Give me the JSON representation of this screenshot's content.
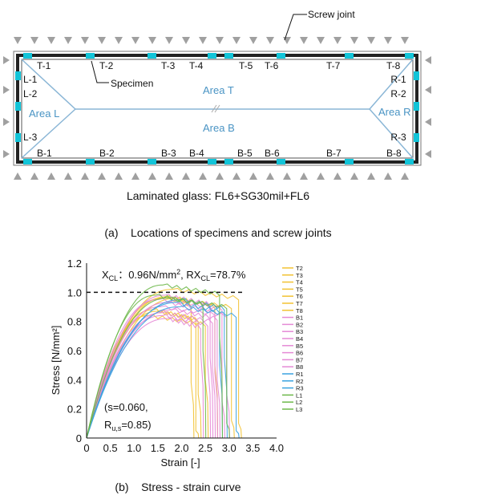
{
  "figure_a": {
    "specimen_labels": {
      "top": [
        "T-1",
        "T-2",
        "T-3",
        "T-4",
        "T-5",
        "T-6",
        "T-7",
        "T-8"
      ],
      "bottom": [
        "B-1",
        "B-2",
        "B-3",
        "B-4",
        "B-5",
        "B-6",
        "B-7",
        "B-8"
      ],
      "left": [
        "L-1",
        "L-2",
        "L-3"
      ],
      "right": [
        "R-1",
        "R-2",
        "R-3"
      ]
    },
    "callout_screw": "Screw joint",
    "callout_specimen": "Specimen",
    "area_t": "Area T",
    "area_b": "Area B",
    "area_l": "Area L",
    "area_r": "Area R",
    "glass_caption": "Laminated glass: FL6+SG30mil+FL6",
    "caption": "(a)    Locations of specimens and screw joints",
    "colors": {
      "frame": "#222222",
      "specimen": "#12c4d8",
      "area_line": "#8ab6d6",
      "area_text": "#4a94c4",
      "support": "#a0a0a0"
    }
  },
  "figure_b": {
    "caption": "(b)    Stress - strain curve",
    "annotation_x": "X",
    "annotation_x_sub": "CL",
    "annotation_x_rest": "：0.96N/mm",
    "annotation_x_sup": "2",
    "annotation_rx": ", RX",
    "annotation_rx_sub": "CL",
    "annotation_rx_rest": "=78.7%",
    "stat_line1": "(s=0.060,",
    "stat_line2_a": "R",
    "stat_line2_sub": "u,s",
    "stat_line2_b": "=0.85)"
  },
  "chart_data": {
    "type": "line",
    "xlabel": "Strain [-]",
    "ylabel": "Stress [N/mm²]",
    "xlim": [
      0,
      4.0
    ],
    "ylim": [
      0,
      1.2
    ],
    "xticks": [
      "0",
      "0.5",
      "1.0",
      "1.5",
      "2.0",
      "2.5",
      "3.0",
      "3.5",
      "4.0"
    ],
    "yticks": [
      "0",
      "0.2",
      "0.4",
      "0.6",
      "0.8",
      "1.0",
      "1.2"
    ],
    "reference_line": {
      "y": 1.0,
      "style": "dashed"
    },
    "legend_position": "right",
    "grid": false,
    "series": [
      {
        "name": "T2",
        "color": "#f2c233",
        "peak": 0.97,
        "peak_strain": 1.7,
        "fail": 2.2,
        "drop": 0.38
      },
      {
        "name": "T3",
        "color": "#f2c233",
        "peak": 0.96,
        "peak_strain": 1.9,
        "fail": 2.7,
        "drop": 0.5
      },
      {
        "name": "T4",
        "color": "#f2c233",
        "peak": 1.02,
        "peak_strain": 1.8,
        "fail": 3.2,
        "drop": 0.1
      },
      {
        "name": "T5",
        "color": "#f2c233",
        "peak": 0.88,
        "peak_strain": 1.4,
        "fail": 2.3,
        "drop": 0.05
      },
      {
        "name": "T6",
        "color": "#f2c233",
        "peak": 0.84,
        "peak_strain": 1.3,
        "fail": 2.5,
        "drop": 0.4
      },
      {
        "name": "T7",
        "color": "#f2c233",
        "peak": 0.96,
        "peak_strain": 1.6,
        "fail": 3.05,
        "drop": 0.12
      },
      {
        "name": "T8",
        "color": "#f2c233",
        "peak": 0.87,
        "peak_strain": 1.5,
        "fail": 2.35,
        "drop": 0.3
      },
      {
        "name": "B1",
        "color": "#e58ad6",
        "peak": 0.84,
        "peak_strain": 1.6,
        "fail": 2.55,
        "drop": 0.5
      },
      {
        "name": "B2",
        "color": "#e58ad6",
        "peak": 0.93,
        "peak_strain": 1.7,
        "fail": 2.7,
        "drop": 0.45
      },
      {
        "name": "B3",
        "color": "#e58ad6",
        "peak": 0.95,
        "peak_strain": 1.5,
        "fail": 2.85,
        "drop": 0.25
      },
      {
        "name": "B4",
        "color": "#e58ad6",
        "peak": 0.98,
        "peak_strain": 1.65,
        "fail": 2.6,
        "drop": 0.55
      },
      {
        "name": "B5",
        "color": "#e58ad6",
        "peak": 0.88,
        "peak_strain": 1.8,
        "fail": 2.75,
        "drop": 0.4
      },
      {
        "name": "B6",
        "color": "#e58ad6",
        "peak": 0.82,
        "peak_strain": 1.7,
        "fail": 2.4,
        "drop": 0.6
      },
      {
        "name": "B7",
        "color": "#e58ad6",
        "peak": 0.9,
        "peak_strain": 1.55,
        "fail": 2.95,
        "drop": 0.3
      },
      {
        "name": "B8",
        "color": "#e58ad6",
        "peak": 0.86,
        "peak_strain": 1.6,
        "fail": 2.65,
        "drop": 0.48
      },
      {
        "name": "R1",
        "color": "#3aa3e0",
        "peak": 0.93,
        "peak_strain": 1.9,
        "fail": 2.8,
        "drop": 0.5
      },
      {
        "name": "R2",
        "color": "#3aa3e0",
        "peak": 0.9,
        "peak_strain": 1.95,
        "fail": 3.15,
        "drop": 0.05
      },
      {
        "name": "R3",
        "color": "#3aa3e0",
        "peak": 0.95,
        "peak_strain": 2.0,
        "fail": 2.9,
        "drop": 0.55
      },
      {
        "name": "L1",
        "color": "#6db84a",
        "peak": 1.05,
        "peak_strain": 1.6,
        "fail": 2.8,
        "drop": 0.7
      },
      {
        "name": "L2",
        "color": "#6db84a",
        "peak": 0.98,
        "peak_strain": 1.45,
        "fail": 2.45,
        "drop": 0.6
      },
      {
        "name": "L3",
        "color": "#6db84a",
        "peak": 0.96,
        "peak_strain": 1.7,
        "fail": 2.95,
        "drop": 0.1
      }
    ]
  }
}
